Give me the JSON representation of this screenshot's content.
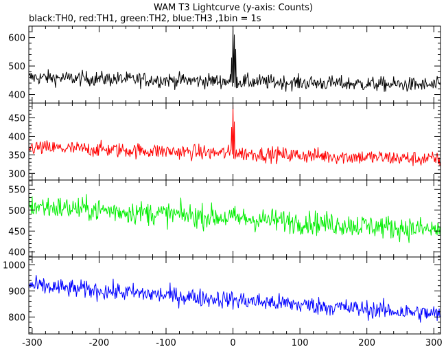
{
  "title": "WAM T3 Lightcurve (y-axis: Counts)",
  "subtitle": "black:TH0, red:TH1, green:TH2, blue:TH3 ,1bin = 1s",
  "chart_data": {
    "type": "line",
    "x": {
      "min": -305,
      "max": 310,
      "step": 1,
      "ticks": [
        -300,
        -200,
        -100,
        0,
        100,
        200,
        300
      ]
    },
    "panels": [
      {
        "name": "TH0",
        "color": "#000000",
        "ylim": [
          370,
          640
        ],
        "yticks": [
          400,
          500,
          600
        ],
        "trend": {
          "x": [
            -305,
            310
          ],
          "y": [
            460,
            432
          ]
        },
        "noise": 24,
        "peaks": [
          {
            "x": 0,
            "y": 640
          },
          {
            "x": 2,
            "y": 610
          },
          {
            "x": 4,
            "y": 560
          },
          {
            "x": -2,
            "y": 530
          }
        ]
      },
      {
        "name": "TH1",
        "color": "#ff0000",
        "ylim": [
          282,
          490
        ],
        "yticks": [
          300,
          350,
          400,
          450
        ],
        "trend": {
          "x": [
            -305,
            310
          ],
          "y": [
            370,
            338
          ]
        },
        "noise": 19,
        "peaks": [
          {
            "x": 0,
            "y": 485
          },
          {
            "x": 2,
            "y": 440
          },
          {
            "x": -2,
            "y": 425
          }
        ]
      },
      {
        "name": "TH2",
        "color": "#00ee00",
        "ylim": [
          388,
          572
        ],
        "yticks": [
          400,
          450,
          500,
          550
        ],
        "trend": {
          "x": [
            -305,
            310
          ],
          "y": [
            510,
            452
          ]
        },
        "noise": 26,
        "peaks": []
      },
      {
        "name": "TH3",
        "color": "#0000ff",
        "ylim": [
          735,
          1030
        ],
        "yticks": [
          800,
          900,
          1000
        ],
        "trend": {
          "x": [
            -305,
            310
          ],
          "y": [
            920,
            810
          ]
        },
        "noise": 32,
        "peaks": []
      }
    ]
  }
}
